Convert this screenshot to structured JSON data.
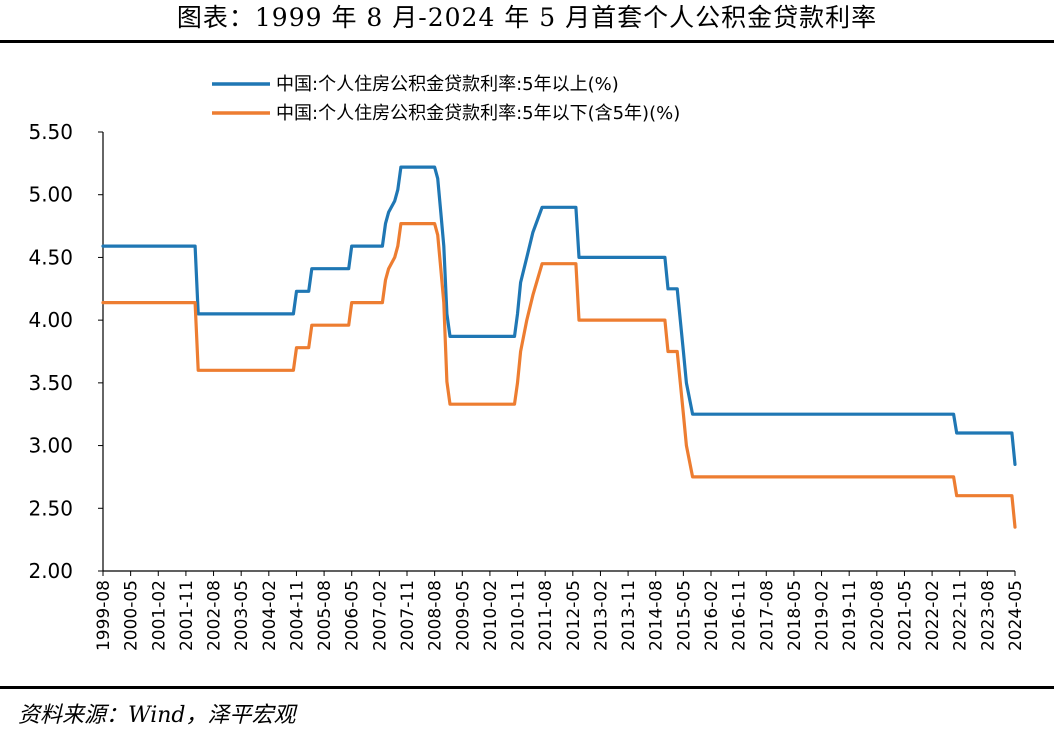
{
  "header": {
    "title": "图表：1999 年 8 月-2024 年 5 月首套个人公积金贷款利率"
  },
  "footer": {
    "source": "资料来源：Wind，泽平宏观"
  },
  "chart_data": {
    "type": "line",
    "ylim": [
      2.0,
      5.5
    ],
    "yticks": [
      "5.50",
      "5.00",
      "4.50",
      "4.00",
      "3.50",
      "3.00",
      "2.50",
      "2.00"
    ],
    "xticks": [
      "1999-08",
      "2000-05",
      "2001-02",
      "2001-11",
      "2002-08",
      "2003-05",
      "2004-02",
      "2004-11",
      "2005-08",
      "2006-05",
      "2007-02",
      "2007-11",
      "2008-08",
      "2009-05",
      "2010-02",
      "2010-11",
      "2011-08",
      "2012-05",
      "2013-02",
      "2013-11",
      "2014-08",
      "2015-05",
      "2016-02",
      "2016-11",
      "2017-08",
      "2018-05",
      "2019-02",
      "2019-11",
      "2020-08",
      "2021-05",
      "2022-02",
      "2022-11",
      "2023-08",
      "2024-05"
    ],
    "legend_position": "top-center",
    "grid": false,
    "series": [
      {
        "name": "中国:个人住房公积金贷款利率:5年以上(%)",
        "color": "#1f77b4",
        "points": [
          [
            "1999-08",
            4.59
          ],
          [
            "2002-02",
            4.59
          ],
          [
            "2002-03",
            4.05
          ],
          [
            "2004-10",
            4.05
          ],
          [
            "2004-11",
            4.23
          ],
          [
            "2005-03",
            4.23
          ],
          [
            "2005-04",
            4.41
          ],
          [
            "2006-04",
            4.41
          ],
          [
            "2006-05",
            4.59
          ],
          [
            "2007-03",
            4.59
          ],
          [
            "2007-04",
            4.77
          ],
          [
            "2007-05",
            4.86
          ],
          [
            "2007-07",
            4.95
          ],
          [
            "2007-08",
            5.04
          ],
          [
            "2007-09",
            5.22
          ],
          [
            "2008-08",
            5.22
          ],
          [
            "2008-09",
            5.13
          ],
          [
            "2008-10",
            4.86
          ],
          [
            "2008-11",
            4.59
          ],
          [
            "2008-12",
            4.05
          ],
          [
            "2009-01",
            3.87
          ],
          [
            "2010-10",
            3.87
          ],
          [
            "2010-11",
            4.05
          ],
          [
            "2010-12",
            4.3
          ],
          [
            "2011-02",
            4.5
          ],
          [
            "2011-04",
            4.7
          ],
          [
            "2011-07",
            4.9
          ],
          [
            "2012-06",
            4.9
          ],
          [
            "2012-07",
            4.5
          ],
          [
            "2014-11",
            4.5
          ],
          [
            "2014-12",
            4.25
          ],
          [
            "2015-03",
            4.25
          ],
          [
            "2015-04",
            4.0
          ],
          [
            "2015-05",
            3.75
          ],
          [
            "2015-06",
            3.5
          ],
          [
            "2015-08",
            3.25
          ],
          [
            "2022-09",
            3.25
          ],
          [
            "2022-10",
            3.1
          ],
          [
            "2024-04",
            3.1
          ],
          [
            "2024-05",
            2.85
          ]
        ]
      },
      {
        "name": "中国:个人住房公积金贷款利率:5年以下(含5年)(%)",
        "color": "#ed7d31",
        "points": [
          [
            "1999-08",
            4.14
          ],
          [
            "2002-02",
            4.14
          ],
          [
            "2002-03",
            3.6
          ],
          [
            "2004-10",
            3.6
          ],
          [
            "2004-11",
            3.78
          ],
          [
            "2005-03",
            3.78
          ],
          [
            "2005-04",
            3.96
          ],
          [
            "2006-04",
            3.96
          ],
          [
            "2006-05",
            4.14
          ],
          [
            "2007-03",
            4.14
          ],
          [
            "2007-04",
            4.32
          ],
          [
            "2007-05",
            4.41
          ],
          [
            "2007-07",
            4.5
          ],
          [
            "2007-08",
            4.59
          ],
          [
            "2007-09",
            4.77
          ],
          [
            "2008-08",
            4.77
          ],
          [
            "2008-09",
            4.68
          ],
          [
            "2008-10",
            4.41
          ],
          [
            "2008-11",
            4.14
          ],
          [
            "2008-12",
            3.51
          ],
          [
            "2009-01",
            3.33
          ],
          [
            "2010-10",
            3.33
          ],
          [
            "2010-11",
            3.5
          ],
          [
            "2010-12",
            3.75
          ],
          [
            "2011-02",
            4.0
          ],
          [
            "2011-04",
            4.2
          ],
          [
            "2011-07",
            4.45
          ],
          [
            "2012-06",
            4.45
          ],
          [
            "2012-07",
            4.0
          ],
          [
            "2014-11",
            4.0
          ],
          [
            "2014-12",
            3.75
          ],
          [
            "2015-03",
            3.75
          ],
          [
            "2015-04",
            3.5
          ],
          [
            "2015-05",
            3.25
          ],
          [
            "2015-06",
            3.0
          ],
          [
            "2015-08",
            2.75
          ],
          [
            "2022-09",
            2.75
          ],
          [
            "2022-10",
            2.6
          ],
          [
            "2024-04",
            2.6
          ],
          [
            "2024-05",
            2.35
          ]
        ]
      }
    ]
  }
}
